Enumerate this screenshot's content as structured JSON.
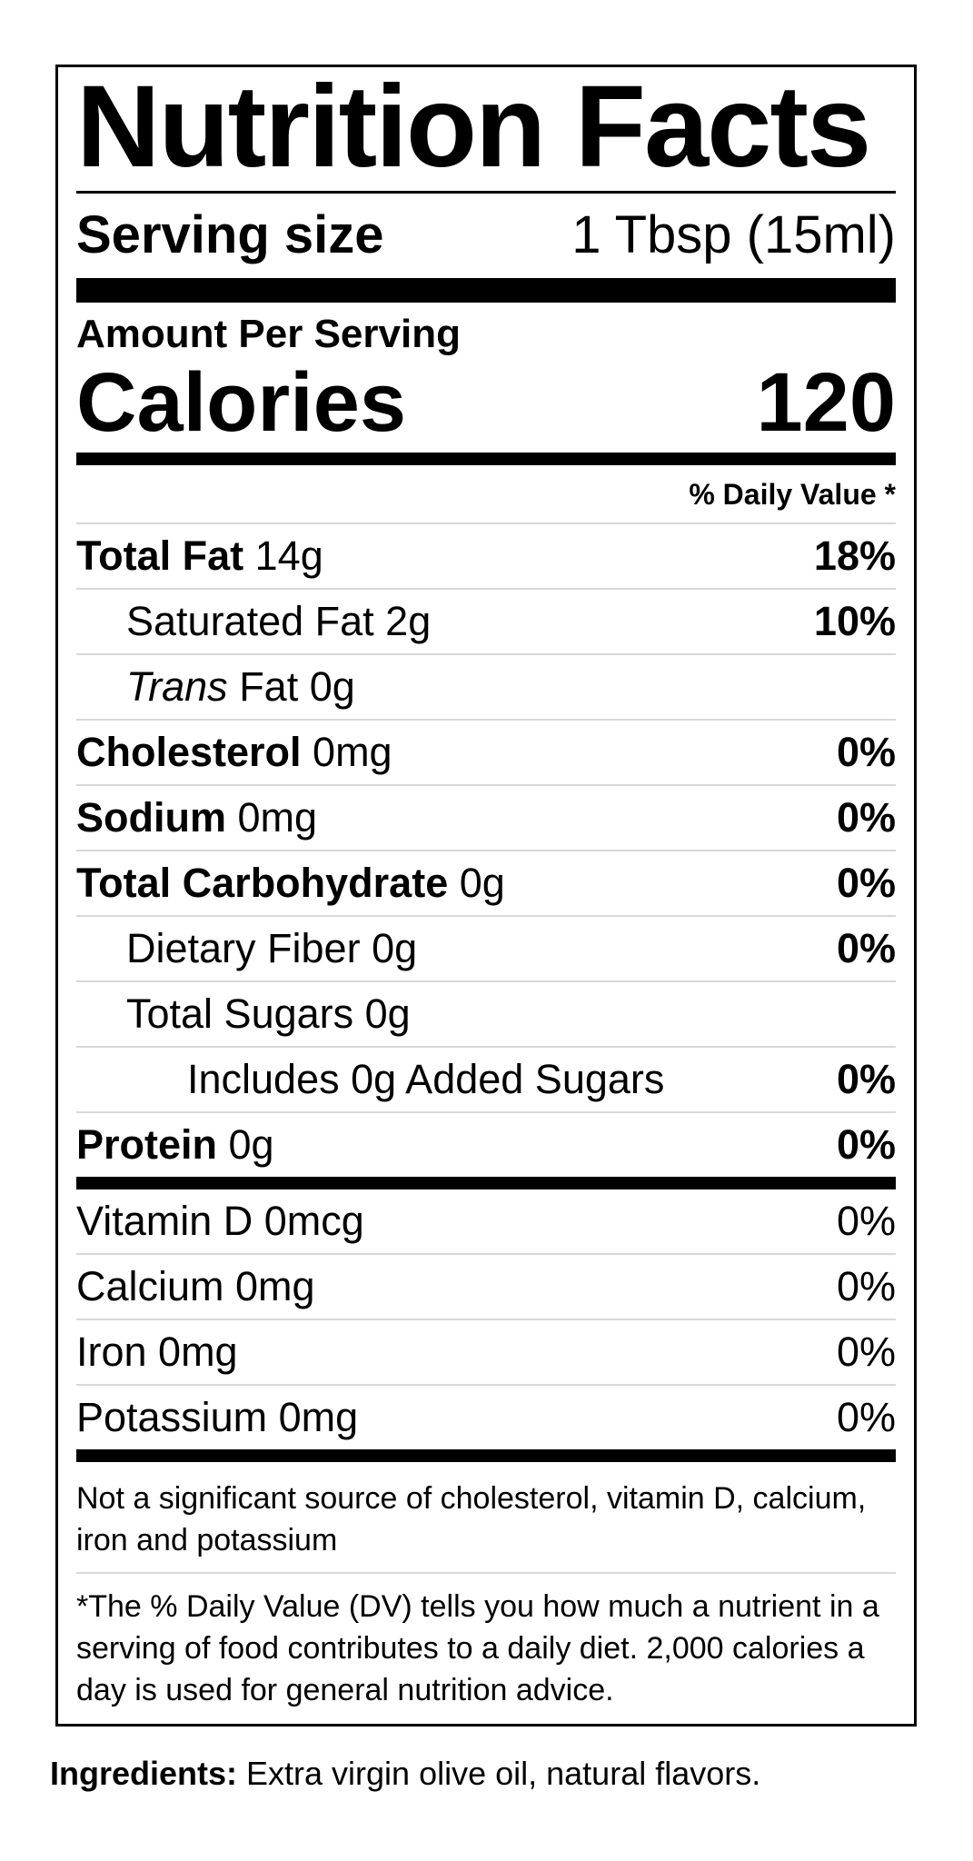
{
  "label": {
    "title": "Nutrition Facts",
    "serving_size": {
      "label": "Serving size",
      "value": "1 Tbsp (15ml)"
    },
    "amount_per_serving": "Amount Per Serving",
    "calories": {
      "label": "Calories",
      "value": "120"
    },
    "daily_value_header": "% Daily Value *",
    "nutrients": [
      {
        "bold": "Total Fat",
        "text": " 14g",
        "dv": "18%",
        "dv_bold": true,
        "indent": 0
      },
      {
        "text": "Saturated Fat 2g",
        "dv": "10%",
        "dv_bold": true,
        "indent": 1
      },
      {
        "italic": "Trans",
        "text": " Fat 0g",
        "dv": "",
        "dv_bold": false,
        "indent": 1
      },
      {
        "bold": "Cholesterol",
        "text": " 0mg",
        "dv": "0%",
        "dv_bold": true,
        "indent": 0
      },
      {
        "bold": "Sodium",
        "text": " 0mg",
        "dv": "0%",
        "dv_bold": true,
        "indent": 0
      },
      {
        "bold": "Total Carbohydrate",
        "text": " 0g",
        "dv": "0%",
        "dv_bold": true,
        "indent": 0
      },
      {
        "text": "Dietary Fiber 0g",
        "dv": "0%",
        "dv_bold": true,
        "indent": 1
      },
      {
        "text": "Total Sugars 0g",
        "dv": "",
        "dv_bold": false,
        "indent": 1
      },
      {
        "text": "Includes 0g Added Sugars",
        "dv": "0%",
        "dv_bold": true,
        "indent": 2
      },
      {
        "bold": "Protein",
        "text": " 0g",
        "dv": "0%",
        "dv_bold": true,
        "indent": 0
      }
    ],
    "vitamins": [
      {
        "text": "Vitamin D 0mcg",
        "dv": "0%",
        "dv_bold": false,
        "indent": 0
      },
      {
        "text": "Calcium 0mg",
        "dv": "0%",
        "dv_bold": false,
        "indent": 0
      },
      {
        "text": "Iron 0mg",
        "dv": "0%",
        "dv_bold": false,
        "indent": 0
      },
      {
        "text": "Potassium 0mg",
        "dv": "0%",
        "dv_bold": false,
        "indent": 0
      }
    ],
    "footnotes": {
      "not_significant": "Not a significant source of cholesterol, vitamin D, calcium, iron and potassium",
      "daily_value": "*The % Daily Value (DV) tells you how much a nutrient in a serving of food contributes to a daily diet. 2,000 calories a day is used for general nutrition advice."
    }
  },
  "ingredients": {
    "label": "Ingredients:",
    "text": " Extra virgin olive oil, natural flavors."
  },
  "colors": {
    "text": "#000000",
    "hairline": "#d8d8d8",
    "bar": "#000000",
    "background": "#ffffff"
  }
}
